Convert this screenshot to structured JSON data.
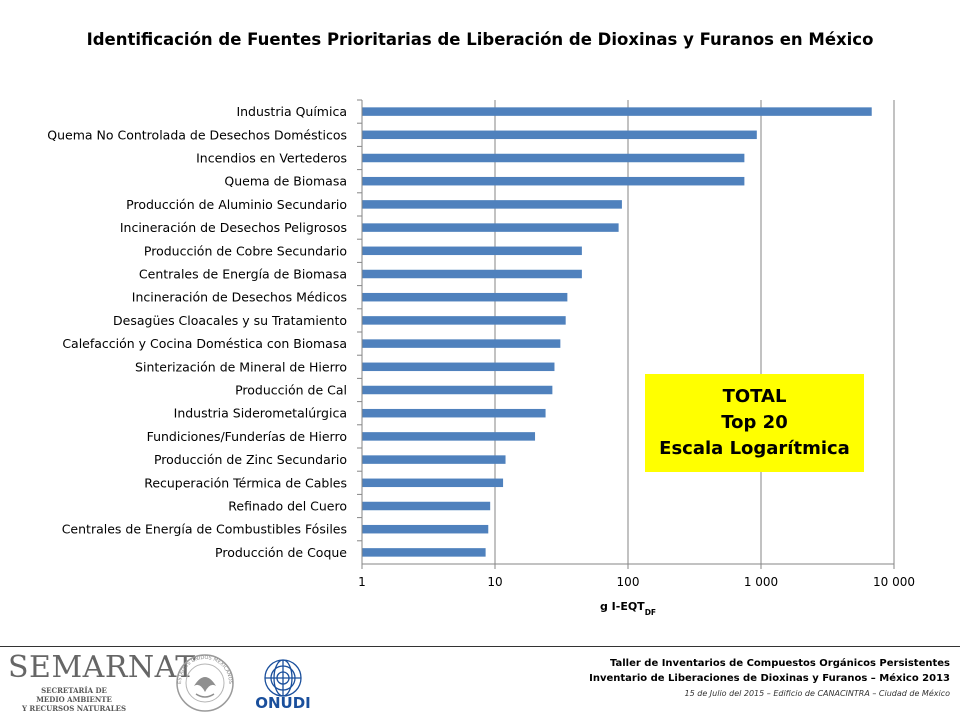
{
  "chart_data": {
    "type": "bar",
    "orientation": "horizontal",
    "title": "Identificación de Fuentes Prioritarias de Liberación de Dioxinas y Furanos en México",
    "xlabel": "g I-EQT",
    "xlabel_subscript": "DF",
    "x_scale": "log",
    "xlim": [
      1,
      10000
    ],
    "x_ticks": [
      "1",
      "10",
      "100",
      "1 000",
      "10 000"
    ],
    "x_tick_values": [
      1,
      10,
      100,
      1000,
      10000
    ],
    "grid": "vertical gridlines at major ticks",
    "bar_color": "#4f81bd",
    "categories": [
      "Industria Química",
      "Quema No Controlada de Desechos Domésticos",
      "Incendios en Vertederos",
      "Quema de Biomasa",
      "Producción de Aluminio Secundario",
      "Incineración de Desechos Peligrosos",
      "Producción de Cobre Secundario",
      "Centrales de Energía de Biomasa",
      "Incineración de Desechos Médicos",
      "Desagües Cloacales y su Tratamiento",
      "Calefacción y Cocina Doméstica con Biomasa",
      "Sinterización de Mineral de Hierro",
      "Producción de Cal",
      "Industria Siderometalúrgica",
      "Fundiciones/Funderías de Hierro",
      "Producción de Zinc Secundario",
      "Recuperación Térmica de Cables",
      "Refinado del Cuero",
      "Centrales de Energía de Combustibles Fósiles",
      "Producción de Coque"
    ],
    "values": [
      6800,
      930,
      750,
      750,
      90,
      85,
      45,
      45,
      35,
      34,
      31,
      28,
      27,
      24,
      20,
      12,
      11.5,
      9.2,
      8.9,
      8.5
    ]
  },
  "annotation": {
    "lines": [
      "TOTAL",
      "Top 20",
      "Escala Logarítmica"
    ],
    "background": "#ffff00"
  },
  "footer": {
    "line1": "Taller de Inventarios de Compuestos Orgánicos Persistentes",
    "line2": "Inventario de Liberaciones de Dioxinas y Furanos – México 2013",
    "line3": "15 de Julio del 2015 – Edificio de CANACINTRA – Ciudad de México"
  },
  "logos": {
    "semarnat_wordmark": "SEMARNAT",
    "semarnat_subtitle": "SECRETARÍA DE\nMEDIO AMBIENTE\nY RECURSOS NATURALES",
    "seal_text": "ESTADOS UNIDOS MEXICANOS",
    "onudi_text": "ONUDI",
    "onudi_color": "#1a4f9c"
  }
}
